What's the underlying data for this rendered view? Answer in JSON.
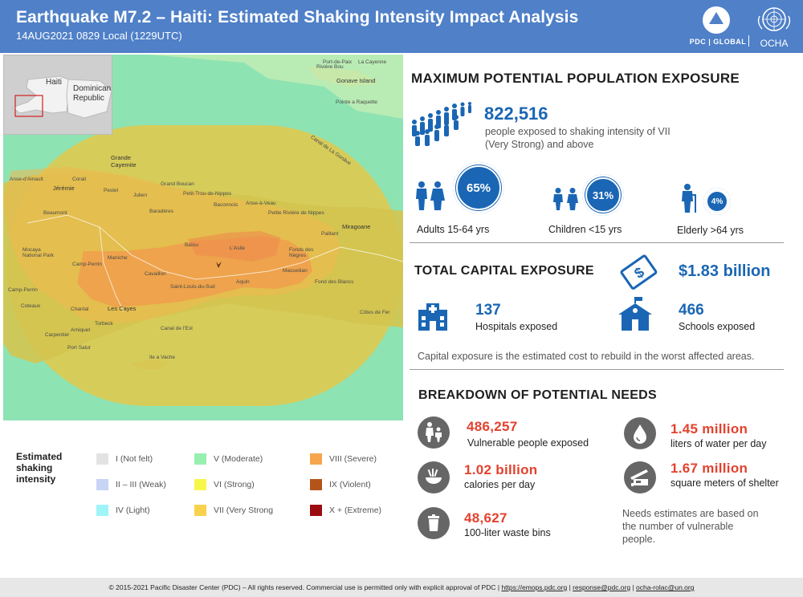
{
  "header": {
    "title": "Earthquake M7.2 – Haiti: Estimated Shaking Intensity Impact Analysis",
    "subtitle": "14AUG2021 0829 Local (1229UTC)",
    "pdc_logo_text": "PDC | GLOBAL",
    "ocha_logo_text": "OCHA"
  },
  "inset": {
    "labels": [
      "Haiti",
      "Dominican",
      "Republic"
    ]
  },
  "map_labels": [
    "Port-de-Paix",
    "La Cayenne",
    "Rivière Bou",
    "Gonave Island",
    "Pointe a Raquette",
    "Canal de La Gonâve",
    "Grande Cayemite",
    "Anse-d'Ainault",
    "Jérémie",
    "Pestel",
    "Corail",
    "Grand Boucan",
    "Petit-Trou-de-Nippes",
    "Anse-à-Veau",
    "Baconnois",
    "Petite Rivière de Nippes",
    "Miragoane",
    "Paillant",
    "Julien",
    "Baradères",
    "Beaumont",
    "Mocaya National Park",
    "Baïou",
    "L'Asile",
    "Fonds des Nègres",
    "Camp-Perrin",
    "Maniche",
    "Cavaillon",
    "Saint-Louis-du-Sud",
    "Aquin",
    "Masseilian",
    "Fond des Blancs",
    "Coteaux",
    "Chantal",
    "Les Cayes",
    "Torbeck",
    "Camp-Perrin",
    "Port Salut",
    "Ile a Vache",
    "Canal de l'Est",
    "Côtes de Fer",
    "Carpentier",
    "Arniquet"
  ],
  "legend": {
    "title": "Estimated shaking intensity",
    "items": [
      {
        "label": "I (Not felt)",
        "color": "#e3e3e3"
      },
      {
        "label": "II – III (Weak)",
        "color": "#c7d4f5"
      },
      {
        "label": "IV (Light)",
        "color": "#9ff4f7"
      },
      {
        "label": "V (Moderate)",
        "color": "#98f0b0"
      },
      {
        "label": "VI (Strong)",
        "color": "#f7f74a"
      },
      {
        "label": "VII (Very Strong",
        "color": "#f8d24c"
      },
      {
        "label": "VIII (Severe)",
        "color": "#f5a54c"
      },
      {
        "label": "IX (Violent)",
        "color": "#b5541a"
      },
      {
        "label": "X + (Extreme)",
        "color": "#9b0c10"
      }
    ]
  },
  "population": {
    "heading": "MAXIMUM POTENTIAL POPULATION EXPOSURE",
    "total": "822,516",
    "description_line1": "people exposed to shaking intensity of VII",
    "description_line2": "(Very Strong) and above",
    "groups": [
      {
        "pct": "65%",
        "label": "Adults 15-64 yrs"
      },
      {
        "pct": "31%",
        "label": "Children <15 yrs"
      },
      {
        "pct": "4%",
        "label": "Elderly >64 yrs"
      }
    ]
  },
  "capital": {
    "heading": "TOTAL CAPITAL EXPOSURE",
    "value": "$1.83 billion",
    "hospitals_count": "137",
    "hospitals_label": "Hospitals exposed",
    "schools_count": "466",
    "schools_label": "Schools exposed",
    "note": "Capital exposure is the estimated cost to rebuild in the worst affected areas."
  },
  "needs": {
    "heading": "BREAKDOWN OF POTENTIAL NEEDS",
    "vulnerable_value": "486,257",
    "vulnerable_label": "Vulnerable people exposed",
    "water_value": "1.45 million",
    "water_label": "liters of water per day",
    "calories_value": "1.02 billion",
    "calories_label": "calories per day",
    "shelter_value": "1.67 million",
    "shelter_label": "square meters of shelter",
    "bins_value": "48,627",
    "bins_label": "100-liter waste bins",
    "note_line1": "Needs estimates are based on",
    "note_line2": "the number of vulnerable",
    "note_line3": "people."
  },
  "footer": {
    "copyright": "© 2015-2021 Pacific Disaster Center (PDC) – All rights reserved. Commercial use is permitted only with explicit approval of PDC",
    "link1": "https://emops.pdc.org",
    "link2": "response@pdc.org",
    "link3": "ocha-rolac@un.org"
  }
}
